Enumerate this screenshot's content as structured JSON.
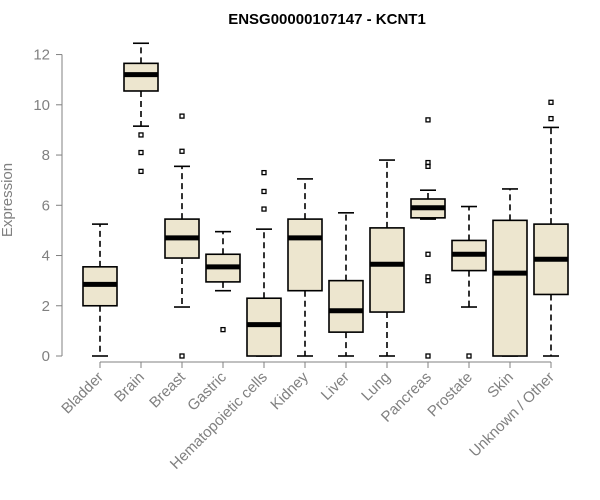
{
  "chart_data": {
    "type": "boxplot",
    "title": "ENSG00000107147 - KCNT1",
    "xlabel": "",
    "ylabel": "Expression",
    "ylim": [
      0,
      12.5
    ],
    "yticks": [
      0,
      2,
      4,
      6,
      8,
      10,
      12
    ],
    "box_fill": "#ede6cf",
    "categories": [
      "Bladder",
      "Brain",
      "Breast",
      "Gastric",
      "Hematopoietic cells",
      "Kidney",
      "Liver",
      "Lung",
      "Pancreas",
      "Prostate",
      "Skin",
      "Unknown / Other"
    ],
    "series": [
      {
        "name": "Bladder",
        "min": 0.0,
        "q1": 2.0,
        "median": 2.85,
        "q3": 3.55,
        "max": 5.25,
        "outliers": []
      },
      {
        "name": "Brain",
        "min": 9.15,
        "q1": 10.55,
        "median": 11.2,
        "q3": 11.65,
        "max": 12.45,
        "outliers": [
          8.8,
          8.1,
          7.35
        ]
      },
      {
        "name": "Breast",
        "min": 1.95,
        "q1": 3.9,
        "median": 4.7,
        "q3": 5.45,
        "max": 7.55,
        "outliers": [
          9.55,
          8.15,
          0.0
        ]
      },
      {
        "name": "Gastric",
        "min": 2.6,
        "q1": 2.95,
        "median": 3.55,
        "q3": 4.05,
        "max": 4.95,
        "outliers": [
          1.05
        ]
      },
      {
        "name": "Hematopoietic cells",
        "min": 0.0,
        "q1": 0.0,
        "median": 1.25,
        "q3": 2.3,
        "max": 5.05,
        "outliers": [
          7.3,
          6.55,
          5.85
        ]
      },
      {
        "name": "Kidney",
        "min": 0.0,
        "q1": 2.6,
        "median": 4.7,
        "q3": 5.45,
        "max": 7.05,
        "outliers": []
      },
      {
        "name": "Liver",
        "min": 0.0,
        "q1": 0.95,
        "median": 1.8,
        "q3": 3.0,
        "max": 5.7,
        "outliers": []
      },
      {
        "name": "Lung",
        "min": 0.0,
        "q1": 1.75,
        "median": 3.65,
        "q3": 5.1,
        "max": 7.8,
        "outliers": []
      },
      {
        "name": "Pancreas",
        "min": 5.45,
        "q1": 5.5,
        "median": 5.9,
        "q3": 6.25,
        "max": 6.6,
        "outliers": [
          9.4,
          7.7,
          7.55,
          4.05,
          3.15,
          3.0,
          0.0
        ]
      },
      {
        "name": "Prostate",
        "min": 1.95,
        "q1": 3.4,
        "median": 4.05,
        "q3": 4.6,
        "max": 5.95,
        "outliers": [
          0.0
        ]
      },
      {
        "name": "Skin",
        "min": 0.0,
        "q1": 0.0,
        "median": 3.3,
        "q3": 5.4,
        "max": 6.65,
        "outliers": []
      },
      {
        "name": "Unknown / Other",
        "min": 0.0,
        "q1": 2.45,
        "median": 3.85,
        "q3": 5.25,
        "max": 9.1,
        "outliers": [
          10.1,
          9.45
        ]
      }
    ]
  }
}
